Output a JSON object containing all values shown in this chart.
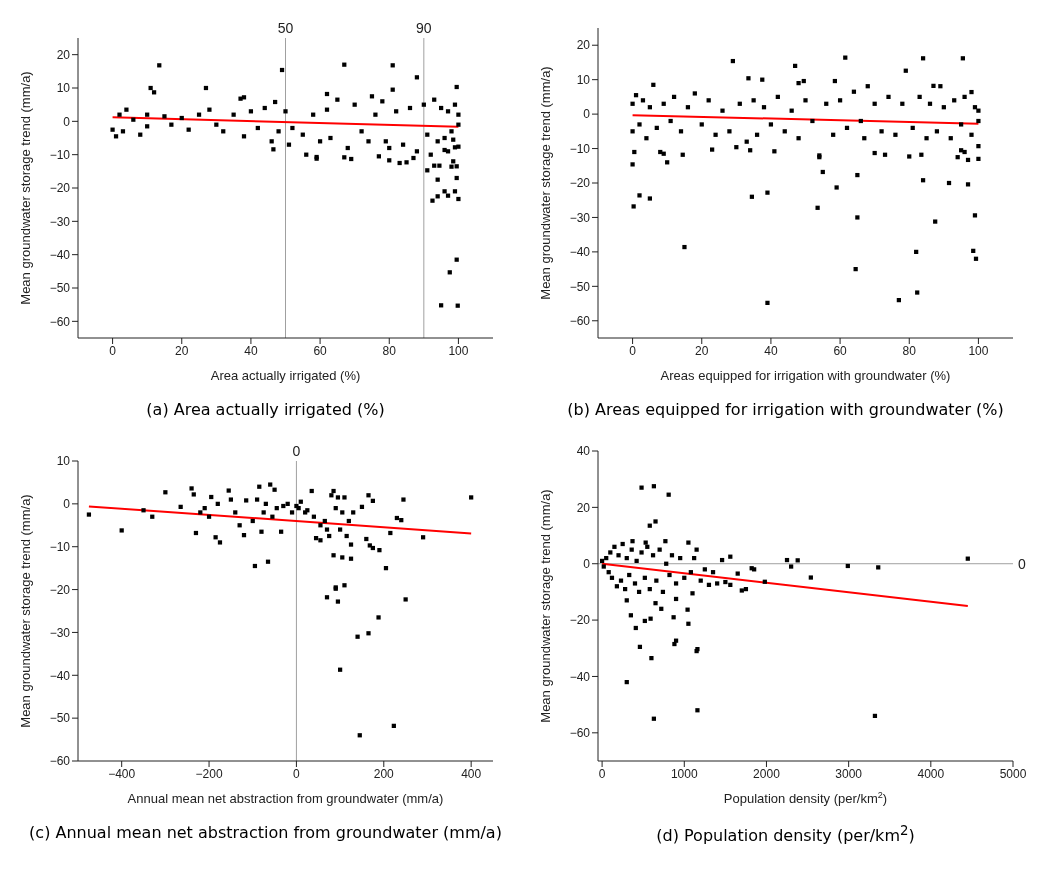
{
  "chart_data": [
    {
      "type": "scatter",
      "title": "(a) Area actually irrigated (%)",
      "xlabel": "Area actually irrigated (%)",
      "ylabel": "Mean groundwater storage trend (mm/a)",
      "xlim": [
        -10,
        110
      ],
      "xticks": [
        0,
        20,
        40,
        60,
        80,
        100
      ],
      "ylim": [
        -65,
        25
      ],
      "yticks": [
        -60,
        -50,
        -40,
        -30,
        -20,
        -10,
        0,
        10,
        20
      ],
      "marker": "square",
      "grid": false,
      "legend": false,
      "ref_lines": [
        {
          "axis": "x",
          "value": 50,
          "label": "50",
          "color": "#a0a0a0"
        },
        {
          "axis": "x",
          "value": 90,
          "label": "90",
          "color": "#a0a0a0"
        }
      ],
      "series": [
        {
          "type": "scatter",
          "color": "#000000",
          "x": [
            13.5,
            11,
            12,
            27,
            49,
            67,
            81,
            81,
            88,
            99.5,
            38,
            37,
            62,
            47,
            46,
            46.5,
            51,
            56,
            59,
            59,
            67,
            69,
            80,
            83,
            85,
            87,
            77,
            91,
            92,
            93,
            94.5,
            94,
            92.5,
            94,
            96,
            97,
            98.5,
            98,
            99.5,
            99.5,
            99,
            100,
            99,
            100,
            96,
            97,
            99.5,
            97.5,
            95,
            99.8,
            0,
            1,
            2,
            4,
            3,
            6,
            8,
            10,
            10,
            15,
            17,
            20,
            22,
            25,
            28,
            30,
            32,
            35,
            38,
            40,
            42,
            44,
            48,
            50,
            52,
            55,
            58,
            60,
            62,
            63,
            65,
            68,
            70,
            72,
            74,
            75,
            76,
            78,
            79,
            80,
            82,
            84,
            86,
            88,
            90,
            91,
            93,
            94,
            95,
            96,
            97,
            98,
            99,
            100,
            100,
            98.5
          ],
          "values": [
            16.8,
            10,
            8.7,
            10,
            15.4,
            17,
            16.8,
            9.5,
            13.2,
            10.3,
            7.2,
            6.8,
            8.2,
            5.8,
            -6,
            -8.4,
            -7,
            -10,
            -10.7,
            -11.2,
            -10.8,
            -11.3,
            -11.7,
            -12.5,
            -12.3,
            -11,
            -10.5,
            -14.7,
            -10,
            -13.3,
            -13.3,
            -17.5,
            -23.8,
            -22.5,
            -21,
            -22.3,
            -12,
            -13.6,
            -13.5,
            -17,
            -21,
            -23.3,
            -7.8,
            -7.6,
            -8.6,
            -9,
            -41.5,
            -45.3,
            -55.2,
            -55.3,
            -2.5,
            -4.5,
            2,
            3.5,
            -3,
            0.5,
            -4,
            2,
            -1.5,
            1.5,
            -1,
            1,
            -2.5,
            2,
            3.5,
            -1,
            -3,
            2,
            -4.5,
            3,
            -2,
            4,
            -3,
            3,
            -2,
            -4,
            2,
            -6,
            3.5,
            -5,
            6.5,
            -8,
            5,
            -3,
            -6,
            7.5,
            2,
            6,
            -6,
            -8,
            3,
            -7,
            4,
            -9,
            5,
            -4,
            6.5,
            -6,
            4,
            -5,
            3,
            -3,
            5,
            -1,
            2,
            -5.5
          ]
        },
        {
          "type": "line",
          "color": "#ff0000",
          "marker": "none",
          "x": [
            0,
            100
          ],
          "values": [
            1.2,
            -1.6
          ]
        }
      ]
    },
    {
      "type": "scatter",
      "title": "(b) Areas equipped for irrigation with groundwater (%)",
      "xlabel": "Areas equipped for irrigation with groundwater (%)",
      "ylabel": "Mean groundwater storage trend (mm/a)",
      "xlim": [
        -10,
        110
      ],
      "xticks": [
        0,
        20,
        40,
        60,
        80,
        100
      ],
      "ylim": [
        -65,
        25
      ],
      "yticks": [
        -60,
        -50,
        -40,
        -30,
        -20,
        -10,
        0,
        10,
        20
      ],
      "marker": "square",
      "grid": false,
      "legend": false,
      "series": [
        {
          "type": "scatter",
          "color": "#000000",
          "x": [
            29,
            47,
            61.5,
            84,
            95.5,
            79,
            33.5,
            37.5,
            48,
            49.5,
            58.5,
            68,
            87,
            89,
            98,
            6,
            0,
            0.3,
            2,
            5,
            10,
            15,
            34.5,
            39,
            39,
            53.5,
            55,
            59,
            64.5,
            65,
            65,
            77,
            82,
            82.3,
            84,
            87.5,
            91.5,
            97,
            99,
            98.5,
            99.3,
            100,
            100,
            97,
            96,
            95,
            94,
            80,
            83.5,
            73,
            70,
            54,
            54,
            23,
            14.5,
            8,
            9,
            0.5,
            41,
            34,
            30,
            0,
            0,
            1,
            2,
            3,
            4,
            5,
            7,
            9,
            11,
            12,
            14,
            16,
            18,
            20,
            22,
            24,
            26,
            28,
            31,
            33,
            35,
            36,
            38,
            40,
            42,
            44,
            46,
            48,
            50,
            52,
            56,
            58,
            60,
            62,
            64,
            66,
            67,
            70,
            72,
            74,
            76,
            78,
            81,
            83,
            85,
            86,
            88,
            90,
            92,
            93,
            95,
            96,
            98,
            99,
            100,
            100
          ],
          "values": [
            15.4,
            14,
            16.4,
            16.2,
            16.2,
            12.6,
            10.4,
            10,
            9,
            9.6,
            9.6,
            8.1,
            8.2,
            8.1,
            6.4,
            8.5,
            -14.6,
            -26.8,
            -23.6,
            -24.5,
            -14,
            -38.6,
            -24,
            -22.8,
            -54.8,
            -27.2,
            -16.8,
            -21.3,
            -45,
            -17.7,
            -30,
            -54,
            -40,
            -51.8,
            -19.2,
            -31.2,
            -20,
            -20.4,
            -29.4,
            -39.7,
            -42,
            -13,
            -9.3,
            -13.3,
            -11,
            -10.5,
            -12.5,
            -12.3,
            -11.8,
            -11.8,
            -11.3,
            -12,
            -12.5,
            -10.3,
            -11.8,
            -11,
            -11.5,
            -11,
            -10.8,
            -10.5,
            -9.6,
            3,
            -5,
            5.5,
            -3,
            4,
            -7,
            2,
            -4,
            3,
            -2,
            5,
            -5,
            2,
            6,
            -3,
            4,
            -6,
            1,
            -5,
            3,
            -8,
            4,
            -6,
            2,
            -3,
            5,
            -5,
            1,
            -7,
            4,
            -2,
            3,
            -6,
            4,
            -4,
            6.5,
            -2,
            -7,
            3,
            -5,
            5,
            -6,
            3,
            -4,
            5,
            -7,
            3,
            -5,
            2,
            -7,
            4,
            -3,
            5,
            -6,
            2,
            -2,
            1
          ]
        },
        {
          "type": "line",
          "color": "#ff0000",
          "marker": "none",
          "x": [
            0,
            100
          ],
          "values": [
            -0.3,
            -2.8
          ]
        }
      ]
    },
    {
      "type": "scatter",
      "title": "(c) Annual mean net abstraction from groundwater (mm/a)",
      "xlabel": "Annual mean net abstraction from groundwater (mm/a)",
      "ylabel": "Mean groundwater storage trend (mm/a)",
      "xlim": [
        -500,
        450
      ],
      "xticks": [
        -400,
        -200,
        0,
        200,
        400
      ],
      "ylim": [
        -60,
        10
      ],
      "yticks": [
        -60,
        -50,
        -40,
        -30,
        -20,
        -10,
        0,
        10
      ],
      "marker": "square",
      "grid": false,
      "legend": false,
      "ref_lines": [
        {
          "axis": "x",
          "value": 0,
          "label": "0",
          "color": "#a0a0a0"
        }
      ],
      "series": [
        {
          "type": "scatter",
          "color": "#000000",
          "x": [
            -475,
            -400,
            -350,
            -330,
            -300,
            -265,
            -240,
            -235,
            -230,
            -195,
            -185,
            -175,
            -95,
            -65,
            -60,
            -50,
            -85,
            -155,
            400,
            290,
            245,
            240,
            230,
            215,
            205,
            190,
            175,
            168,
            160,
            165,
            175,
            150,
            130,
            85,
            105,
            125,
            125,
            70,
            90,
            95,
            110,
            90,
            100,
            140,
            165,
            188,
            250,
            145,
            223,
            -220,
            -210,
            -200,
            -180,
            -150,
            -140,
            -130,
            -120,
            -115,
            -100,
            -90,
            -80,
            -75,
            -70,
            -55,
            -45,
            -35,
            -30,
            -20,
            -10,
            0,
            5,
            10,
            20,
            25,
            35,
            40,
            45,
            55,
            55,
            65,
            70,
            75,
            80,
            85,
            90,
            95,
            100,
            110,
            115,
            120,
            105
          ],
          "values": [
            -2.5,
            -6.2,
            -1.5,
            -3,
            2.7,
            -0.7,
            3.6,
            2.2,
            -6.8,
            1.6,
            -7.8,
            -9,
            -14.5,
            -13.5,
            4.5,
            3.3,
            4,
            3.1,
            1.5,
            -7.8,
            1,
            -3.8,
            -3.3,
            -6.8,
            -15,
            -10.8,
            -10.3,
            -9.7,
            -8.2,
            2,
            0.7,
            -0.7,
            -2,
            -12,
            -12.5,
            -12.8,
            -9.5,
            -21.8,
            -19.5,
            -22.8,
            -19,
            -19.8,
            -38.7,
            -31,
            -30.2,
            -26.5,
            -22.3,
            -54,
            -51.8,
            -2,
            -1,
            -3,
            0,
            1,
            -2,
            -5,
            -7.3,
            0.8,
            -4,
            1,
            -6.5,
            -2,
            0,
            -3,
            -1,
            -6.5,
            -0.5,
            0,
            -2,
            -0.5,
            -1,
            0.5,
            -2,
            -1.5,
            3,
            -3,
            -8,
            -5,
            -8.5,
            -4,
            -6,
            -7.5,
            2,
            3,
            -1,
            1.5,
            -6,
            1.5,
            -7.5,
            -4,
            -2
          ]
        },
        {
          "type": "line",
          "color": "#ff0000",
          "marker": "none",
          "x": [
            -475,
            400
          ],
          "values": [
            -0.6,
            -6.9
          ]
        }
      ]
    },
    {
      "type": "scatter",
      "title": "(d) Population density (per/km$^{2}$)",
      "xlabel": "Population density (per/km$^{2}$)",
      "ylabel": "Mean groundwater storage trend (mm/a)",
      "xlim": [
        -50,
        5000
      ],
      "xticks": [
        0,
        1000,
        2000,
        3000,
        4000,
        5000
      ],
      "ylim": [
        -70,
        40
      ],
      "yticks": [
        -60,
        -40,
        -20,
        0,
        20,
        40
      ],
      "marker": "square",
      "grid": false,
      "legend": false,
      "ref_lines": [
        {
          "axis": "y",
          "value": 0,
          "label": "0",
          "color": "#a0a0a0"
        }
      ],
      "series": [
        {
          "type": "scatter",
          "color": "#000000",
          "x": [
            480,
            630,
            810,
            650,
            580,
            300,
            630,
            1160,
            3320,
            600,
            460,
            880,
            900,
            1150,
            1160,
            1050,
            870,
            520,
            590,
            410,
            350,
            1040,
            720,
            650,
            300,
            900,
            1700,
            1750,
            2540,
            2300,
            2250,
            2380,
            2990,
            3360,
            4450,
            1980,
            1820,
            1850,
            1560,
            1460,
            1560,
            1500,
            1650,
            1050,
            1150,
            770,
            370,
            530,
            1100,
            0,
            20,
            50,
            80,
            100,
            120,
            150,
            180,
            200,
            230,
            250,
            280,
            300,
            330,
            360,
            400,
            420,
            450,
            480,
            520,
            550,
            580,
            620,
            660,
            700,
            740,
            780,
            820,
            850,
            900,
            950,
            1000,
            1080,
            1120,
            1200,
            1250,
            1300,
            1350,
            1400
          ],
          "values": [
            27,
            27.5,
            24.5,
            15,
            13.5,
            -42,
            -55,
            -52,
            -54,
            -33.5,
            -29.5,
            -28.5,
            -27.3,
            -31,
            -30.3,
            -21.3,
            -19,
            -20.3,
            -19.5,
            -22.8,
            -18.3,
            -16.3,
            -16,
            -14,
            -13,
            -12.5,
            -9.5,
            -9,
            -4.9,
            -1,
            1.3,
            1.2,
            -0.8,
            -1.3,
            1.8,
            -6.4,
            -1.6,
            -2,
            2.5,
            1.3,
            -7.5,
            -6.5,
            -3.5,
            7.5,
            5,
            8,
            8,
            7.5,
            -10.5,
            1,
            -1,
            2,
            -3,
            4,
            -5,
            6,
            -8,
            3,
            -6,
            7,
            -9,
            2,
            -4,
            5,
            -7,
            1,
            -10,
            4,
            -5,
            6,
            -9,
            3,
            -6,
            5,
            -10,
            0,
            -4,
            3,
            -7,
            2,
            -5,
            -3,
            2,
            -6,
            -2,
            -7.5,
            -3,
            -7
          ]
        },
        {
          "type": "line",
          "color": "#ff0000",
          "marker": "none",
          "x": [
            0,
            4450
          ],
          "values": [
            0,
            -15
          ]
        }
      ]
    }
  ]
}
